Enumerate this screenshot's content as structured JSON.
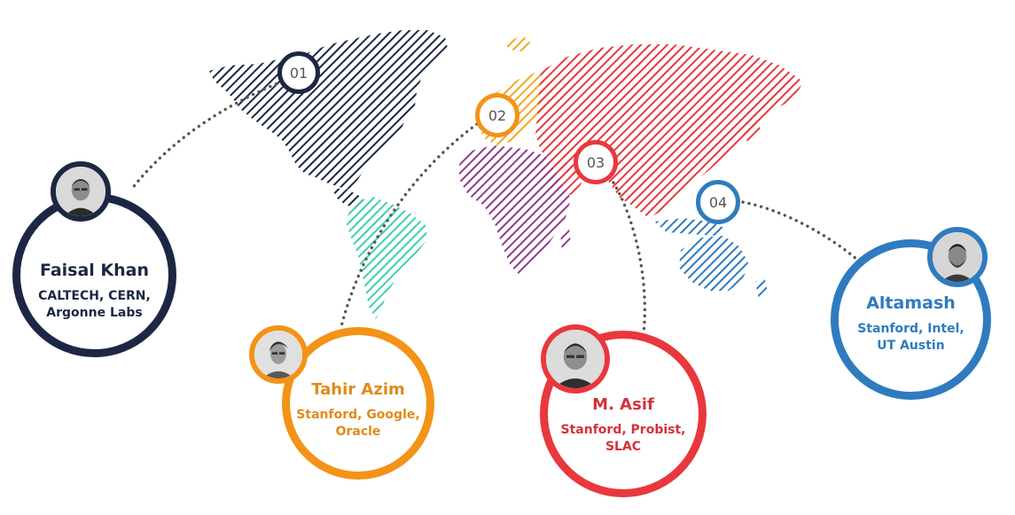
{
  "colors": {
    "navy": "#1d2744",
    "orange": "#f39317",
    "red": "#e8383d",
    "blue": "#2f7bbf",
    "purple": "#8f3a8c",
    "teal": "#3fcfb0",
    "connector": "#555555"
  },
  "markers": [
    {
      "number": "01",
      "color": "navy"
    },
    {
      "number": "02",
      "color": "orange"
    },
    {
      "number": "03",
      "color": "red"
    },
    {
      "number": "04",
      "color": "blue"
    }
  ],
  "people": [
    {
      "name": "Faisal Khan",
      "affiliations": "CALTECH, CERN,\nArgonne Labs",
      "icon": "person-avatar-icon"
    },
    {
      "name": "Tahir Azim",
      "affiliations": "Stanford, Google,\nOracle",
      "icon": "person-avatar-icon"
    },
    {
      "name": "M. Asif",
      "affiliations": "Stanford, Probist,\nSLAC",
      "icon": "person-avatar-icon"
    },
    {
      "name": "Altamash",
      "affiliations": "Stanford, Intel,\nUT Austin",
      "icon": "person-avatar-icon"
    }
  ]
}
